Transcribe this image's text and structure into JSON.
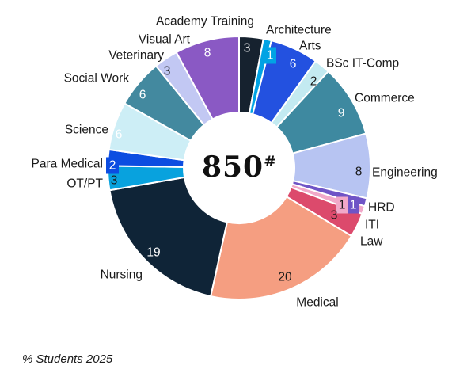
{
  "page": {
    "background_color": "#ffffff"
  },
  "chart_data": {
    "type": "pie",
    "subtype": "donut",
    "title": "",
    "legend": "none",
    "direction": "clockwise",
    "start_angle_deg": 0,
    "grid": false,
    "center_label": {
      "value": "850",
      "suffix": "#"
    },
    "footnote": "% Students 2025",
    "labels_layout": "category names outside, values on slices; tiny slices use color-boxed value labels",
    "series": [
      {
        "label": "Academy Training",
        "value": 3,
        "color": "#16222f",
        "value_label_color": "#ffffff",
        "value_label_boxed": false
      },
      {
        "label": "Architecture",
        "value": 1,
        "color": "#01a3e4",
        "value_label_color": "#ffffff",
        "value_label_boxed": true
      },
      {
        "label": "Arts",
        "value": 6,
        "color": "#2351e0",
        "value_label_color": "#ffffff",
        "value_label_boxed": false
      },
      {
        "label": "BSc IT-Comp",
        "value": 2,
        "color": "#c3eaf1",
        "value_label_color": "#1a1a1a",
        "value_label_boxed": false
      },
      {
        "label": "Commerce",
        "value": 9,
        "color": "#3e89a0",
        "value_label_color": "#ffffff",
        "value_label_boxed": false
      },
      {
        "label": "Engineering",
        "value": 8,
        "color": "#b7c4f2",
        "value_label_color": "#1a1a1a",
        "value_label_boxed": false
      },
      {
        "label": "HRD",
        "value": 1,
        "color": "#6f54c6",
        "value_label_color": "#ffffff",
        "value_label_boxed": true
      },
      {
        "label": "ITI",
        "value": 1,
        "color": "#f1a8c9",
        "value_label_color": "#1a1a1a",
        "value_label_boxed": true
      },
      {
        "label": "Law",
        "value": 3,
        "color": "#dc4a6c",
        "value_label_color": "#1a1a1a",
        "value_label_boxed": false
      },
      {
        "label": "Medical",
        "value": 20,
        "color": "#f59e81",
        "value_label_color": "#1a1a1a",
        "value_label_boxed": false
      },
      {
        "label": "Nursing",
        "value": 19,
        "color": "#0f2437",
        "value_label_color": "#ffffff",
        "value_label_boxed": false
      },
      {
        "label": "OT/PT",
        "value": 3,
        "color": "#08a2de",
        "value_label_color": "#1a1a1a",
        "value_label_boxed": false
      },
      {
        "label": "Para Medical",
        "value": 2,
        "color": "#0c4de1",
        "value_label_color": "#ffffff",
        "value_label_boxed": true
      },
      {
        "label": "Science",
        "value": 6,
        "color": "#cdeef6",
        "value_label_color": "#ffffff",
        "value_label_boxed": false
      },
      {
        "label": "Social Work",
        "value": 6,
        "color": "#43899f",
        "value_label_color": "#ffffff",
        "value_label_boxed": false
      },
      {
        "label": "Veterinary",
        "value": 3,
        "color": "#c2c8f3",
        "value_label_color": "#1a1a1a",
        "value_label_boxed": false
      },
      {
        "label": "Visual Art",
        "value": 8,
        "color": "#8a59c4",
        "value_label_color": "#ffffff",
        "value_label_boxed": false
      }
    ]
  }
}
